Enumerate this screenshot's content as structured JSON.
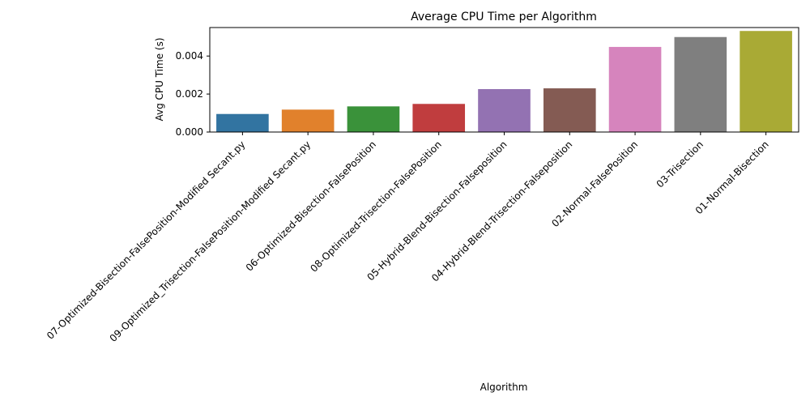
{
  "chart_data": {
    "type": "bar",
    "title": "Average CPU Time per Algorithm",
    "xlabel": "Algorithm",
    "ylabel": "Avg CPU Time (s)",
    "ylim": [
      0,
      0.0055
    ],
    "yticks": [
      0.0,
      0.002,
      0.004
    ],
    "ytick_labels": [
      "0.000",
      "0.002",
      "0.004"
    ],
    "grid": false,
    "categories": [
      "07-Optimized-Bisection-FalsePosition-Modified Secant.py",
      "09-Optimized_Trisection-FalsePosition-Modified Secant.py",
      "06-Optimized-Bisection-FalsePosition",
      "08-Optimized-Trisection-FalsePosition",
      "05-Hybrid-Blend-Bisection-Falseposition",
      "04-Hybrid-Blend-Trisection-Falseposition",
      "02-Normal-FalsePosition",
      "03-Trisection",
      "01-Normal-Bisection"
    ],
    "values": [
      0.00095,
      0.00118,
      0.00135,
      0.00148,
      0.00226,
      0.0023,
      0.00448,
      0.005,
      0.00532
    ],
    "colors": [
      "#3274a1",
      "#e1812c",
      "#3a923a",
      "#c03d3e",
      "#9372b2",
      "#845b53",
      "#d684bd",
      "#7f7f7f",
      "#a9aa35"
    ]
  }
}
